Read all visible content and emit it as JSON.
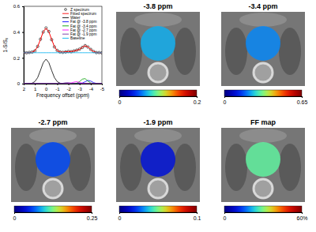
{
  "chart_data": [
    {
      "type": "line",
      "x_label": "Frequency offset (ppm)",
      "y_label": "1-S/S₀",
      "x": [
        2,
        1.75,
        1.5,
        1.25,
        1,
        0.75,
        0.5,
        0.25,
        0,
        -0.25,
        -0.5,
        -0.75,
        -1,
        -1.25,
        -1.5,
        -1.75,
        -2,
        -2.25,
        -2.5,
        -2.75,
        -3,
        -3.25,
        -3.5,
        -3.75,
        -4,
        -4.25,
        -4.5,
        -4.75,
        -5
      ],
      "xlim": [
        2,
        -5
      ],
      "xticks": [
        2,
        1,
        0,
        -1,
        -2,
        -3,
        -4,
        -5
      ],
      "ylim": [
        0,
        0.6
      ],
      "yticks": [
        0,
        0.2,
        0.4,
        0.6
      ],
      "legend": "upper right",
      "series": [
        {
          "name": "Z spectrum",
          "type": "scatter",
          "marker": "circle",
          "color": "#000000",
          "values": [
            0.241,
            0.239,
            0.242,
            0.245,
            0.254,
            0.289,
            0.345,
            0.401,
            0.432,
            0.405,
            0.341,
            0.285,
            0.258,
            0.246,
            0.243,
            0.246,
            0.25,
            0.248,
            0.254,
            0.26,
            0.268,
            0.281,
            0.295,
            0.284,
            0.266,
            0.25,
            0.241,
            0.241,
            0.239
          ]
        },
        {
          "name": "Fitted spectrum",
          "type": "line",
          "color": "#ff0000",
          "values": [
            0.24,
            0.24,
            0.241,
            0.244,
            0.256,
            0.287,
            0.343,
            0.403,
            0.43,
            0.403,
            0.343,
            0.287,
            0.256,
            0.245,
            0.244,
            0.247,
            0.249,
            0.249,
            0.253,
            0.259,
            0.266,
            0.283,
            0.294,
            0.285,
            0.265,
            0.249,
            0.242,
            0.24,
            0.24
          ]
        },
        {
          "name": "Water",
          "type": "line",
          "color": "#000000",
          "values": [
            0,
            0,
            0.001,
            0.004,
            0.016,
            0.047,
            0.103,
            0.163,
            0.19,
            0.163,
            0.103,
            0.047,
            0.016,
            0.004,
            0.001,
            0,
            0,
            0,
            0,
            0,
            0,
            0,
            0,
            0,
            0,
            0,
            0,
            0,
            0
          ]
        },
        {
          "name": "Fat @ -3.8 ppm",
          "type": "line",
          "color": "#0000ff",
          "values": [
            0,
            0,
            0,
            0,
            0,
            0,
            0,
            0,
            0,
            0,
            0,
            0,
            0,
            0,
            0,
            0,
            0,
            0,
            0,
            0,
            0.001,
            0.005,
            0.015,
            0.025,
            0.02,
            0.008,
            0.002,
            0,
            0
          ]
        },
        {
          "name": "Fat @ -3.4 ppm",
          "type": "line",
          "color": "#00a000",
          "values": [
            0,
            0,
            0,
            0,
            0,
            0,
            0,
            0,
            0,
            0,
            0,
            0,
            0,
            0,
            0,
            0,
            0,
            0,
            0,
            0.004,
            0.016,
            0.035,
            0.039,
            0.02,
            0.005,
            0.001,
            0,
            0,
            0
          ]
        },
        {
          "name": "Fat @ -2.7 ppm",
          "type": "line",
          "color": "#ff00ff",
          "values": [
            0,
            0,
            0,
            0,
            0,
            0,
            0,
            0,
            0,
            0,
            0,
            0,
            0,
            0,
            0,
            0,
            0.001,
            0.005,
            0.012,
            0.015,
            0.009,
            0.003,
            0,
            0,
            0,
            0,
            0,
            0,
            0
          ]
        },
        {
          "name": "Fat @ -1.9 ppm",
          "type": "line",
          "color": "#7030a0",
          "values": [
            0,
            0,
            0,
            0,
            0,
            0,
            0,
            0,
            0,
            0,
            0,
            0,
            0,
            0.001,
            0.003,
            0.007,
            0.008,
            0.004,
            0.001,
            0,
            0,
            0,
            0,
            0,
            0,
            0,
            0,
            0,
            0
          ]
        },
        {
          "name": "Baseline",
          "type": "line",
          "color": "#00b0f0",
          "values": [
            0.24,
            0.24,
            0.24,
            0.24,
            0.24,
            0.24,
            0.24,
            0.24,
            0.24,
            0.24,
            0.24,
            0.24,
            0.24,
            0.24,
            0.24,
            0.24,
            0.24,
            0.24,
            0.24,
            0.24,
            0.24,
            0.24,
            0.24,
            0.24,
            0.24,
            0.24,
            0.24,
            0.24,
            0.24
          ]
        }
      ]
    },
    {
      "type": "heatmap",
      "title": "-3.8 ppm",
      "values": [
        0.07
      ],
      "colorbar": {
        "range": [
          0,
          0.2
        ],
        "ticks": [
          0,
          0.2
        ]
      }
    },
    {
      "type": "heatmap",
      "title": "-3.4 ppm",
      "values": [
        0.2
      ],
      "colorbar": {
        "range": [
          0,
          0.65
        ],
        "ticks": [
          0,
          0.65
        ]
      }
    },
    {
      "type": "heatmap",
      "title": "-2.7 ppm",
      "values": [
        0.06
      ],
      "colorbar": {
        "range": [
          0,
          0.25
        ],
        "ticks": [
          0,
          0.25
        ]
      }
    },
    {
      "type": "heatmap",
      "title": "-1.9 ppm",
      "values": [
        0.015
      ],
      "colorbar": {
        "range": [
          0,
          0.1
        ],
        "ticks": [
          0,
          0.1
        ]
      }
    },
    {
      "type": "heatmap",
      "title": "FF map",
      "values": [
        28
      ],
      "colorbar": {
        "range": [
          0,
          60
        ],
        "ticks": [
          0,
          {
            "value": 60,
            "label": "60%"
          }
        ]
      }
    }
  ]
}
